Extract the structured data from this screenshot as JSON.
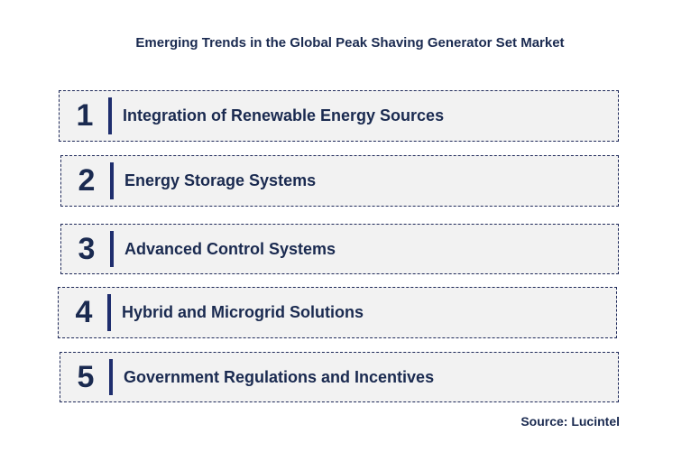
{
  "title": "Emerging Trends in the Global Peak Shaving Generator Set Market",
  "trends": [
    {
      "number": "1",
      "label": "Integration of Renewable Energy Sources"
    },
    {
      "number": "2",
      "label": "Energy Storage Systems"
    },
    {
      "number": "3",
      "label": "Advanced Control Systems"
    },
    {
      "number": "4",
      "label": "Hybrid and Microgrid Solutions"
    },
    {
      "number": "5",
      "label": "Government Regulations and Incentives"
    }
  ],
  "source": "Source: Lucintel",
  "colors": {
    "text": "#1a2a50",
    "accent_bar": "#1f2e6e",
    "box_fill": "#f2f2f2",
    "box_border": "#1f2a5a"
  }
}
